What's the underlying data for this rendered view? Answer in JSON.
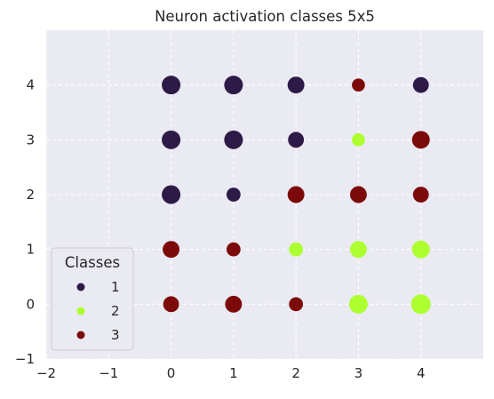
{
  "chart_data": {
    "type": "scatter",
    "title": "Neuron activation classes 5x5",
    "xlabel": "",
    "ylabel": "",
    "xlim": [
      -2,
      5
    ],
    "ylim": [
      -1,
      5
    ],
    "xticks": [
      -2,
      -1,
      0,
      1,
      2,
      3,
      4
    ],
    "yticks": [
      -1,
      0,
      1,
      2,
      3,
      4
    ],
    "grid": true,
    "legend": {
      "title": "Classes",
      "placement": "lower-left",
      "entries": [
        {
          "label": "1",
          "color": "#2e1a47"
        },
        {
          "label": "2",
          "color": "#adff2f"
        },
        {
          "label": "3",
          "color": "#7c0a0a"
        }
      ]
    },
    "points": [
      {
        "x": 0,
        "y": 4,
        "class": 1,
        "size": 1.0
      },
      {
        "x": 1,
        "y": 4,
        "class": 1,
        "size": 1.0
      },
      {
        "x": 2,
        "y": 4,
        "class": 1,
        "size": 0.9
      },
      {
        "x": 3,
        "y": 4,
        "class": 3,
        "size": 0.7
      },
      {
        "x": 4,
        "y": 4,
        "class": 1,
        "size": 0.85
      },
      {
        "x": 0,
        "y": 3,
        "class": 1,
        "size": 1.0
      },
      {
        "x": 1,
        "y": 3,
        "class": 1,
        "size": 1.0
      },
      {
        "x": 2,
        "y": 3,
        "class": 1,
        "size": 0.85
      },
      {
        "x": 3,
        "y": 3,
        "class": 2,
        "size": 0.7
      },
      {
        "x": 4,
        "y": 3,
        "class": 3,
        "size": 0.95
      },
      {
        "x": 0,
        "y": 2,
        "class": 1,
        "size": 1.0
      },
      {
        "x": 1,
        "y": 2,
        "class": 1,
        "size": 0.75
      },
      {
        "x": 2,
        "y": 2,
        "class": 3,
        "size": 0.9
      },
      {
        "x": 3,
        "y": 2,
        "class": 3,
        "size": 0.9
      },
      {
        "x": 4,
        "y": 2,
        "class": 3,
        "size": 0.85
      },
      {
        "x": 0,
        "y": 1,
        "class": 3,
        "size": 0.9
      },
      {
        "x": 1,
        "y": 1,
        "class": 3,
        "size": 0.75
      },
      {
        "x": 2,
        "y": 1,
        "class": 2,
        "size": 0.75
      },
      {
        "x": 3,
        "y": 1,
        "class": 2,
        "size": 0.9
      },
      {
        "x": 4,
        "y": 1,
        "class": 2,
        "size": 0.95
      },
      {
        "x": 0,
        "y": 0,
        "class": 3,
        "size": 0.85
      },
      {
        "x": 1,
        "y": 0,
        "class": 3,
        "size": 0.9
      },
      {
        "x": 2,
        "y": 0,
        "class": 3,
        "size": 0.75
      },
      {
        "x": 3,
        "y": 0,
        "class": 2,
        "size": 1.0
      },
      {
        "x": 4,
        "y": 0,
        "class": 2,
        "size": 1.05
      }
    ]
  }
}
